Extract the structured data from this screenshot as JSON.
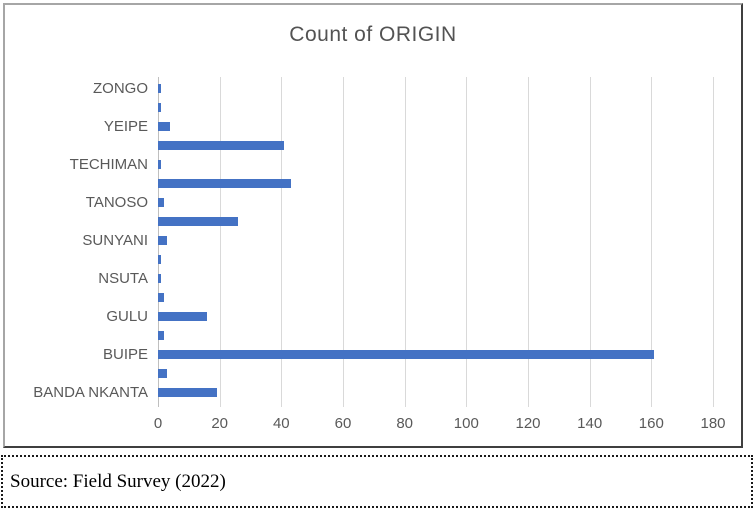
{
  "chart_data": {
    "type": "bar",
    "orientation": "horizontal",
    "title": "Count of ORIGIN",
    "categories": [
      {
        "label": "ZONGO",
        "value": 1
      },
      {
        "label": "",
        "value": 1
      },
      {
        "label": "YEIPE",
        "value": 4
      },
      {
        "label": "",
        "value": 41
      },
      {
        "label": "TECHIMAN",
        "value": 1
      },
      {
        "label": "",
        "value": 43
      },
      {
        "label": "TANOSO",
        "value": 2
      },
      {
        "label": "",
        "value": 26
      },
      {
        "label": "SUNYANI",
        "value": 3
      },
      {
        "label": "",
        "value": 1
      },
      {
        "label": "NSUTA",
        "value": 1
      },
      {
        "label": "",
        "value": 2
      },
      {
        "label": "GULU",
        "value": 16
      },
      {
        "label": "",
        "value": 2
      },
      {
        "label": "BUIPE",
        "value": 161
      },
      {
        "label": "",
        "value": 3
      },
      {
        "label": "BANDA NKANTA",
        "value": 19
      }
    ],
    "note_hidden_labels": "axis shows every other category label; blank labels are unlabeled bars",
    "xticks": [
      0,
      20,
      40,
      60,
      80,
      100,
      120,
      140,
      160,
      180
    ],
    "xlim": [
      0,
      180
    ],
    "grid": "vertical",
    "legend": "none",
    "colors": {
      "bar": "#4472C4",
      "gridline": "#D9D9D9",
      "axis_line": "#BFBFBF",
      "text": "#595959",
      "title": "#535353"
    }
  },
  "caption": {
    "text": "Source: Field Survey (2022)"
  }
}
